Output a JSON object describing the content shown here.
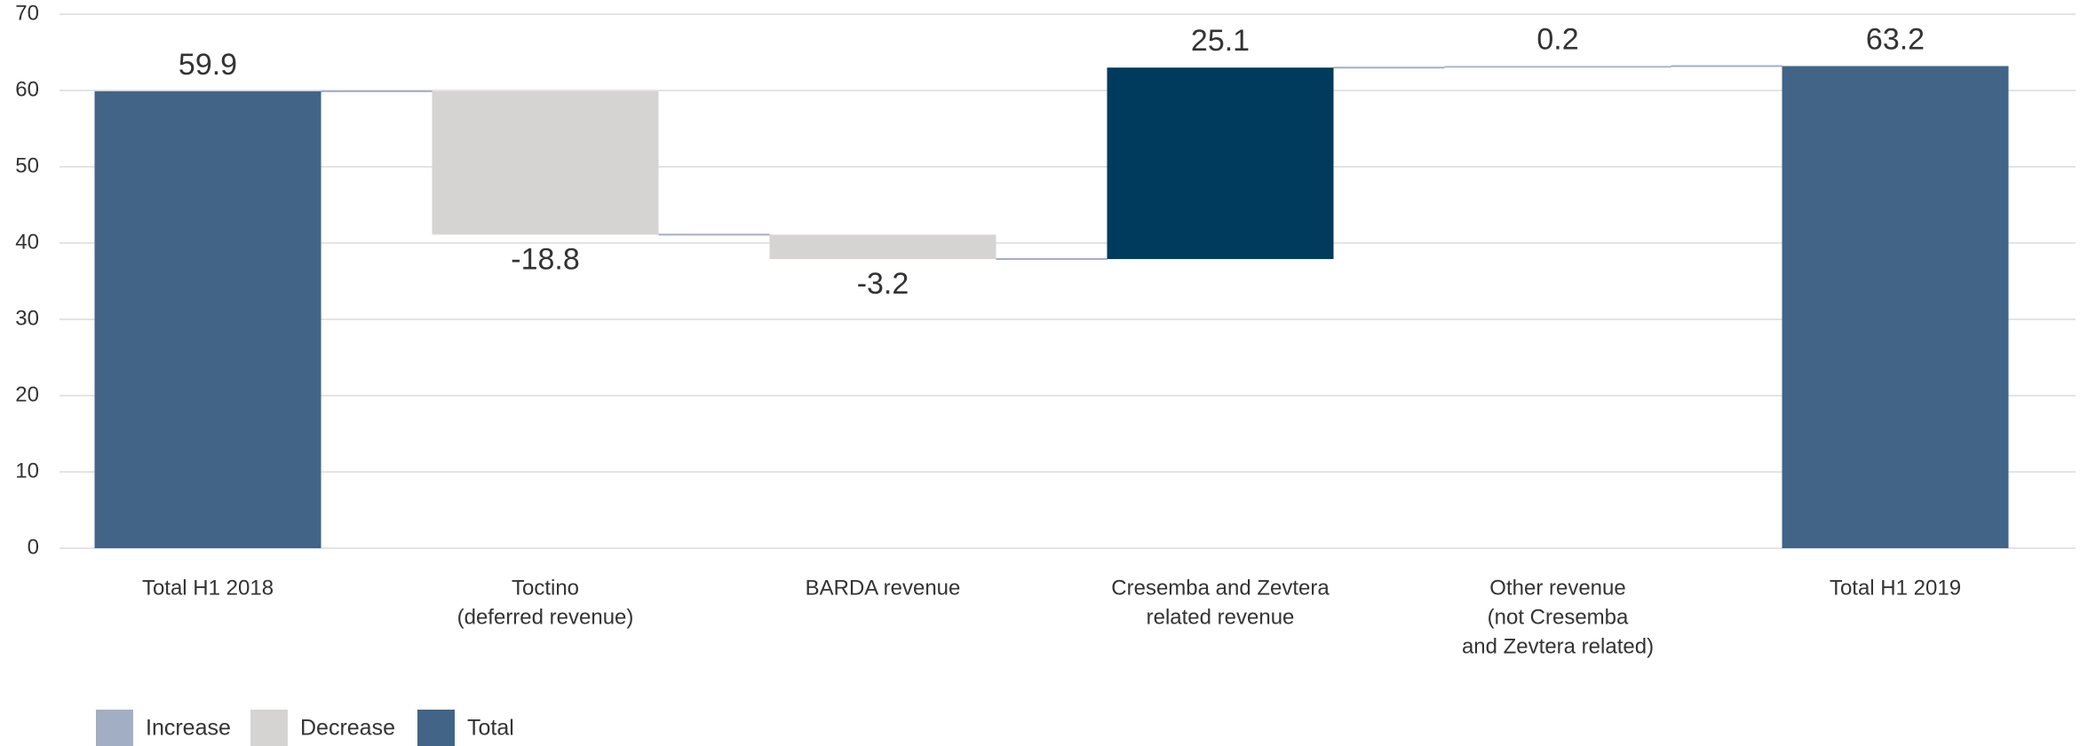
{
  "chart_data": {
    "type": "waterfall",
    "categories": [
      [
        "Total H1 2018"
      ],
      [
        "Toctino",
        "(deferred revenue)"
      ],
      [
        "BARDA revenue"
      ],
      [
        "Cresemba and Zevtera",
        "related revenue"
      ],
      [
        "Other revenue",
        "(not Cresemba",
        "and Zevtera related)"
      ],
      [
        "Total H1 2019"
      ]
    ],
    "measure": [
      "total",
      "relative",
      "relative",
      "relative",
      "relative",
      "total"
    ],
    "values": [
      59.9,
      -18.8,
      -3.2,
      25.1,
      0.2,
      63.2
    ],
    "colors": [
      "#426487",
      "#d6d3d3",
      "#d6d3d3",
      "#003a5c",
      "#a2aec4",
      "#426487"
    ],
    "ylim": [
      0,
      70
    ],
    "yticks": [
      0,
      10,
      20,
      30,
      40,
      50,
      60,
      70
    ],
    "grid": true,
    "legend": {
      "position": "bottom-left",
      "items": [
        {
          "name": "Increase",
          "color": "#a2aec4"
        },
        {
          "name": "Decrease",
          "color": "#d6d3d3"
        },
        {
          "name": "Total",
          "color": "#426487"
        }
      ]
    }
  }
}
